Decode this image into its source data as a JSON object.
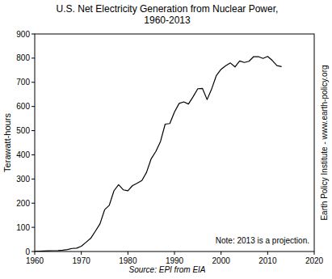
{
  "chart_data": {
    "type": "line",
    "title": "U.S. Net Electricity Generation from Nuclear Power,",
    "subtitle": "1960-2013",
    "y_label": "Terawatt-hours",
    "note": "Note: 2013 is a projection.",
    "source": "Source: EPI from EIA",
    "credit": "Earth Policy Institute - www.earth-policy.org",
    "x": [
      1960,
      1961,
      1962,
      1963,
      1964,
      1965,
      1966,
      1967,
      1968,
      1969,
      1970,
      1971,
      1972,
      1973,
      1974,
      1975,
      1976,
      1977,
      1978,
      1979,
      1980,
      1981,
      1982,
      1983,
      1984,
      1985,
      1986,
      1987,
      1988,
      1989,
      1990,
      1991,
      1992,
      1993,
      1994,
      1995,
      1996,
      1997,
      1998,
      1999,
      2000,
      2001,
      2002,
      2003,
      2004,
      2005,
      2006,
      2007,
      2008,
      2009,
      2010,
      2011,
      2012,
      2013
    ],
    "values": [
      0.5,
      1.7,
      2.3,
      3.2,
      3.3,
      3.7,
      5.5,
      7.7,
      12.5,
      13.9,
      21.8,
      38.1,
      54.1,
      83.5,
      114,
      172.5,
      191,
      250.9,
      276.4,
      255.2,
      251.1,
      272.7,
      282.8,
      293.7,
      327.6,
      383.7,
      414,
      455.3,
      527,
      529.4,
      576.9,
      612.6,
      618.8,
      610.3,
      640.4,
      673.4,
      674.7,
      628.6,
      673.7,
      728.3,
      753.9,
      768.8,
      780.1,
      763.7,
      788.5,
      782,
      787.2,
      806.4,
      806.2,
      798.9,
      807,
      790.2,
      769.3,
      765
    ],
    "color": "#000000",
    "xlim": [
      1960,
      2020
    ],
    "xticks": [
      1960,
      1970,
      1980,
      1990,
      2000,
      2010,
      2020
    ],
    "ylim": [
      0,
      900
    ],
    "yticks": [
      0,
      100,
      200,
      300,
      400,
      500,
      600,
      700,
      800,
      900
    ],
    "grid": false
  }
}
